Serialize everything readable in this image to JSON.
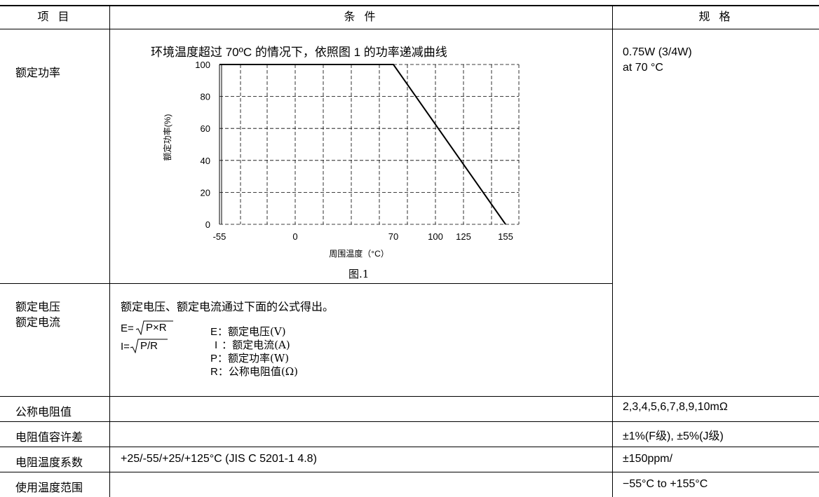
{
  "headers": {
    "item": "项 目",
    "condition": "条 件",
    "spec": "规 格"
  },
  "rated_power": {
    "label": "额定功率",
    "condition_text": "环境温度超过 70ºC 的情况下，依照图 1 的功率递减曲线",
    "spec_line1": "0.75W (3/4W)",
    "spec_line2": "at 70 °C"
  },
  "rated_voltage_current": {
    "label_line1": "额定电压",
    "label_line2": "额定电流",
    "intro": "额定电压、额定电流通过下面的公式得出。",
    "formula_e_prefix": "E=",
    "formula_e_radicand": "P×R",
    "formula_i_prefix": "I=",
    "formula_i_radicand": "P/R",
    "legend": [
      {
        "sym": "E",
        "desc": "：额定电压(V)"
      },
      {
        "sym": "I",
        "desc": "：额定电流(A)"
      },
      {
        "sym": "P",
        "desc": "：额定功率(W)"
      },
      {
        "sym": "R",
        "desc": "：公称电阻值(Ω)"
      }
    ]
  },
  "rows": [
    {
      "label": "公称电阻值",
      "condition": "",
      "spec": "2,3,4,5,6,7,8,9,10mΩ"
    },
    {
      "label": "电阻值容许差",
      "condition": "",
      "spec": "±1%(F级), ±5%(J级)"
    },
    {
      "label": "电阻温度系数",
      "condition": "+25/-55/+25/+125°C (JIS C 5201-1 4.8)",
      "spec": "±150ppm/"
    },
    {
      "label": "使用温度范围",
      "condition": "",
      "spec": "−55°C to +155°C"
    }
  ],
  "chart_data": {
    "type": "line",
    "ylabel": "额定功率(%)",
    "xlabel": "周围温度（°C）",
    "caption": "图.1",
    "ylim": [
      0,
      100
    ],
    "yticks": [
      "0",
      "20",
      "40",
      "60",
      "80",
      "100"
    ],
    "xticks": [
      "-55",
      "0",
      "70",
      "100",
      "125",
      "155"
    ],
    "grid": true,
    "series": [
      {
        "x": [
          -55,
          70,
          155
        ],
        "y": [
          100,
          100,
          0
        ]
      }
    ]
  }
}
